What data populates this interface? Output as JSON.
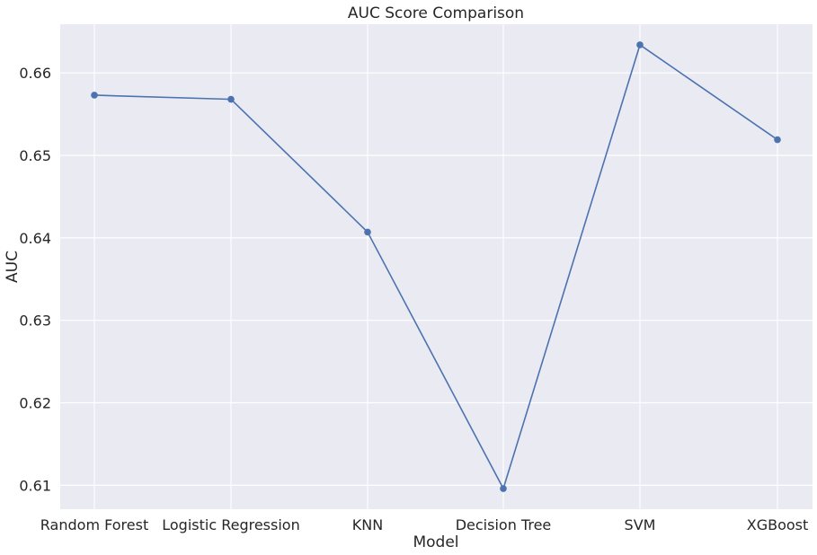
{
  "chart_data": {
    "type": "line",
    "title": "AUC Score Comparison",
    "xlabel": "Model",
    "ylabel": "AUC",
    "categories": [
      "Random Forest",
      "Logistic Regression",
      "KNN",
      "Decision Tree",
      "SVM",
      "XGBoost"
    ],
    "series": [
      {
        "values": [
          0.6573,
          0.6568,
          0.6407,
          0.6096,
          0.6634,
          0.6519
        ]
      }
    ],
    "ylim": [
      0.6071,
      0.6659
    ],
    "yticks": [
      0.61,
      0.62,
      0.63,
      0.64,
      0.65,
      0.66
    ],
    "ytick_labels": [
      "0.61",
      "0.62",
      "0.63",
      "0.64",
      "0.65",
      "0.66"
    ],
    "grid": true,
    "colors": {
      "background": "#eaeaf2",
      "grid": "#ffffff",
      "line": "#4c72b0"
    }
  }
}
